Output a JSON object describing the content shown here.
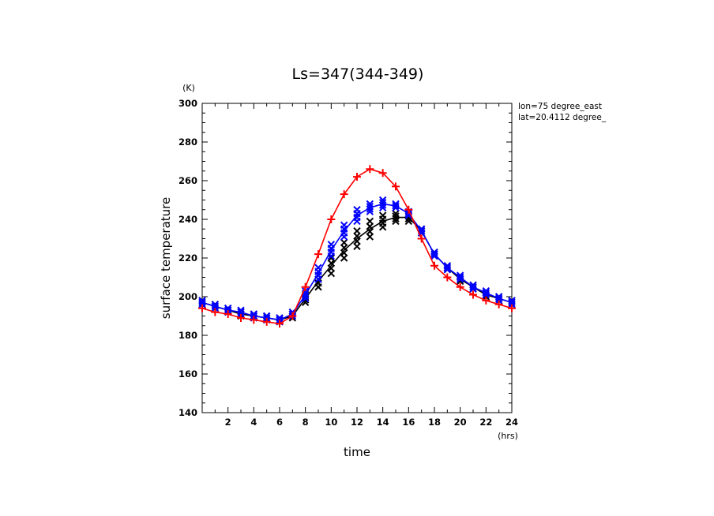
{
  "chart_data": {
    "type": "line",
    "title": "Ls=347(344-349)",
    "xlabel": "time",
    "ylabel": "surface temperature",
    "x_unit": "(hrs)",
    "y_unit": "(K)",
    "xlim": [
      0,
      24
    ],
    "ylim": [
      140,
      300
    ],
    "x_ticks": [
      2,
      4,
      6,
      8,
      10,
      12,
      14,
      16,
      18,
      20,
      22,
      24
    ],
    "y_ticks": [
      140,
      160,
      180,
      200,
      220,
      240,
      260,
      280,
      300
    ],
    "grid": false,
    "annotations": [
      "lon=75 degree_east",
      "lat=20.4112 degree_"
    ],
    "series": [
      {
        "color": "#000000",
        "marker": "x",
        "x": [
          0,
          1,
          2,
          3,
          4,
          5,
          6,
          7,
          8,
          9,
          10,
          11,
          12,
          13,
          14,
          15,
          16,
          17,
          18,
          19,
          20,
          21,
          22,
          23,
          24
        ],
        "values": [
          197,
          195,
          193,
          191,
          190,
          189,
          188,
          190,
          199,
          208,
          216,
          224,
          230,
          235,
          239,
          241,
          241,
          234,
          222,
          215,
          209,
          205,
          201,
          199,
          197
        ],
        "spread": [
          1,
          1,
          1,
          1,
          1,
          1,
          1,
          1,
          2,
          3,
          4,
          4,
          4,
          4,
          3,
          2,
          2,
          1,
          1,
          1,
          1,
          1,
          1,
          1,
          1
        ]
      },
      {
        "color": "#0000ff",
        "marker": "x",
        "x": [
          0,
          1,
          2,
          3,
          4,
          5,
          6,
          7,
          8,
          9,
          10,
          11,
          12,
          13,
          14,
          15,
          16,
          17,
          18,
          19,
          20,
          21,
          22,
          23,
          24
        ],
        "values": [
          197,
          195,
          193,
          192,
          190,
          189,
          188,
          191,
          201,
          212,
          224,
          234,
          242,
          246,
          248,
          247,
          243,
          234,
          222,
          215,
          210,
          205,
          202,
          199,
          197
        ],
        "spread": [
          1,
          1,
          1,
          1,
          1,
          1,
          1,
          1,
          2,
          3,
          3,
          3,
          3,
          2,
          2,
          1,
          1,
          1,
          1,
          1,
          1,
          1,
          1,
          1,
          1
        ]
      },
      {
        "color": "#ff0000",
        "marker": "+",
        "x": [
          0,
          1,
          2,
          3,
          4,
          5,
          6,
          7,
          8,
          9,
          10,
          11,
          12,
          13,
          14,
          15,
          16,
          17,
          18,
          19,
          20,
          21,
          22,
          23,
          24
        ],
        "values": [
          194,
          192,
          191,
          189,
          188,
          187,
          186,
          190,
          205,
          222,
          240,
          253,
          262,
          266,
          264,
          257,
          245,
          230,
          216,
          210,
          205,
          201,
          198,
          196,
          194
        ],
        "spread": [
          0.5,
          0.5,
          0.5,
          0.5,
          0.5,
          0.5,
          0.5,
          0.5,
          0.5,
          0.5,
          0.5,
          0.5,
          0.5,
          0.5,
          0.5,
          0.5,
          0.5,
          0.5,
          0.5,
          0.5,
          0.5,
          0.5,
          0.5,
          0.5,
          0.5
        ]
      }
    ]
  }
}
